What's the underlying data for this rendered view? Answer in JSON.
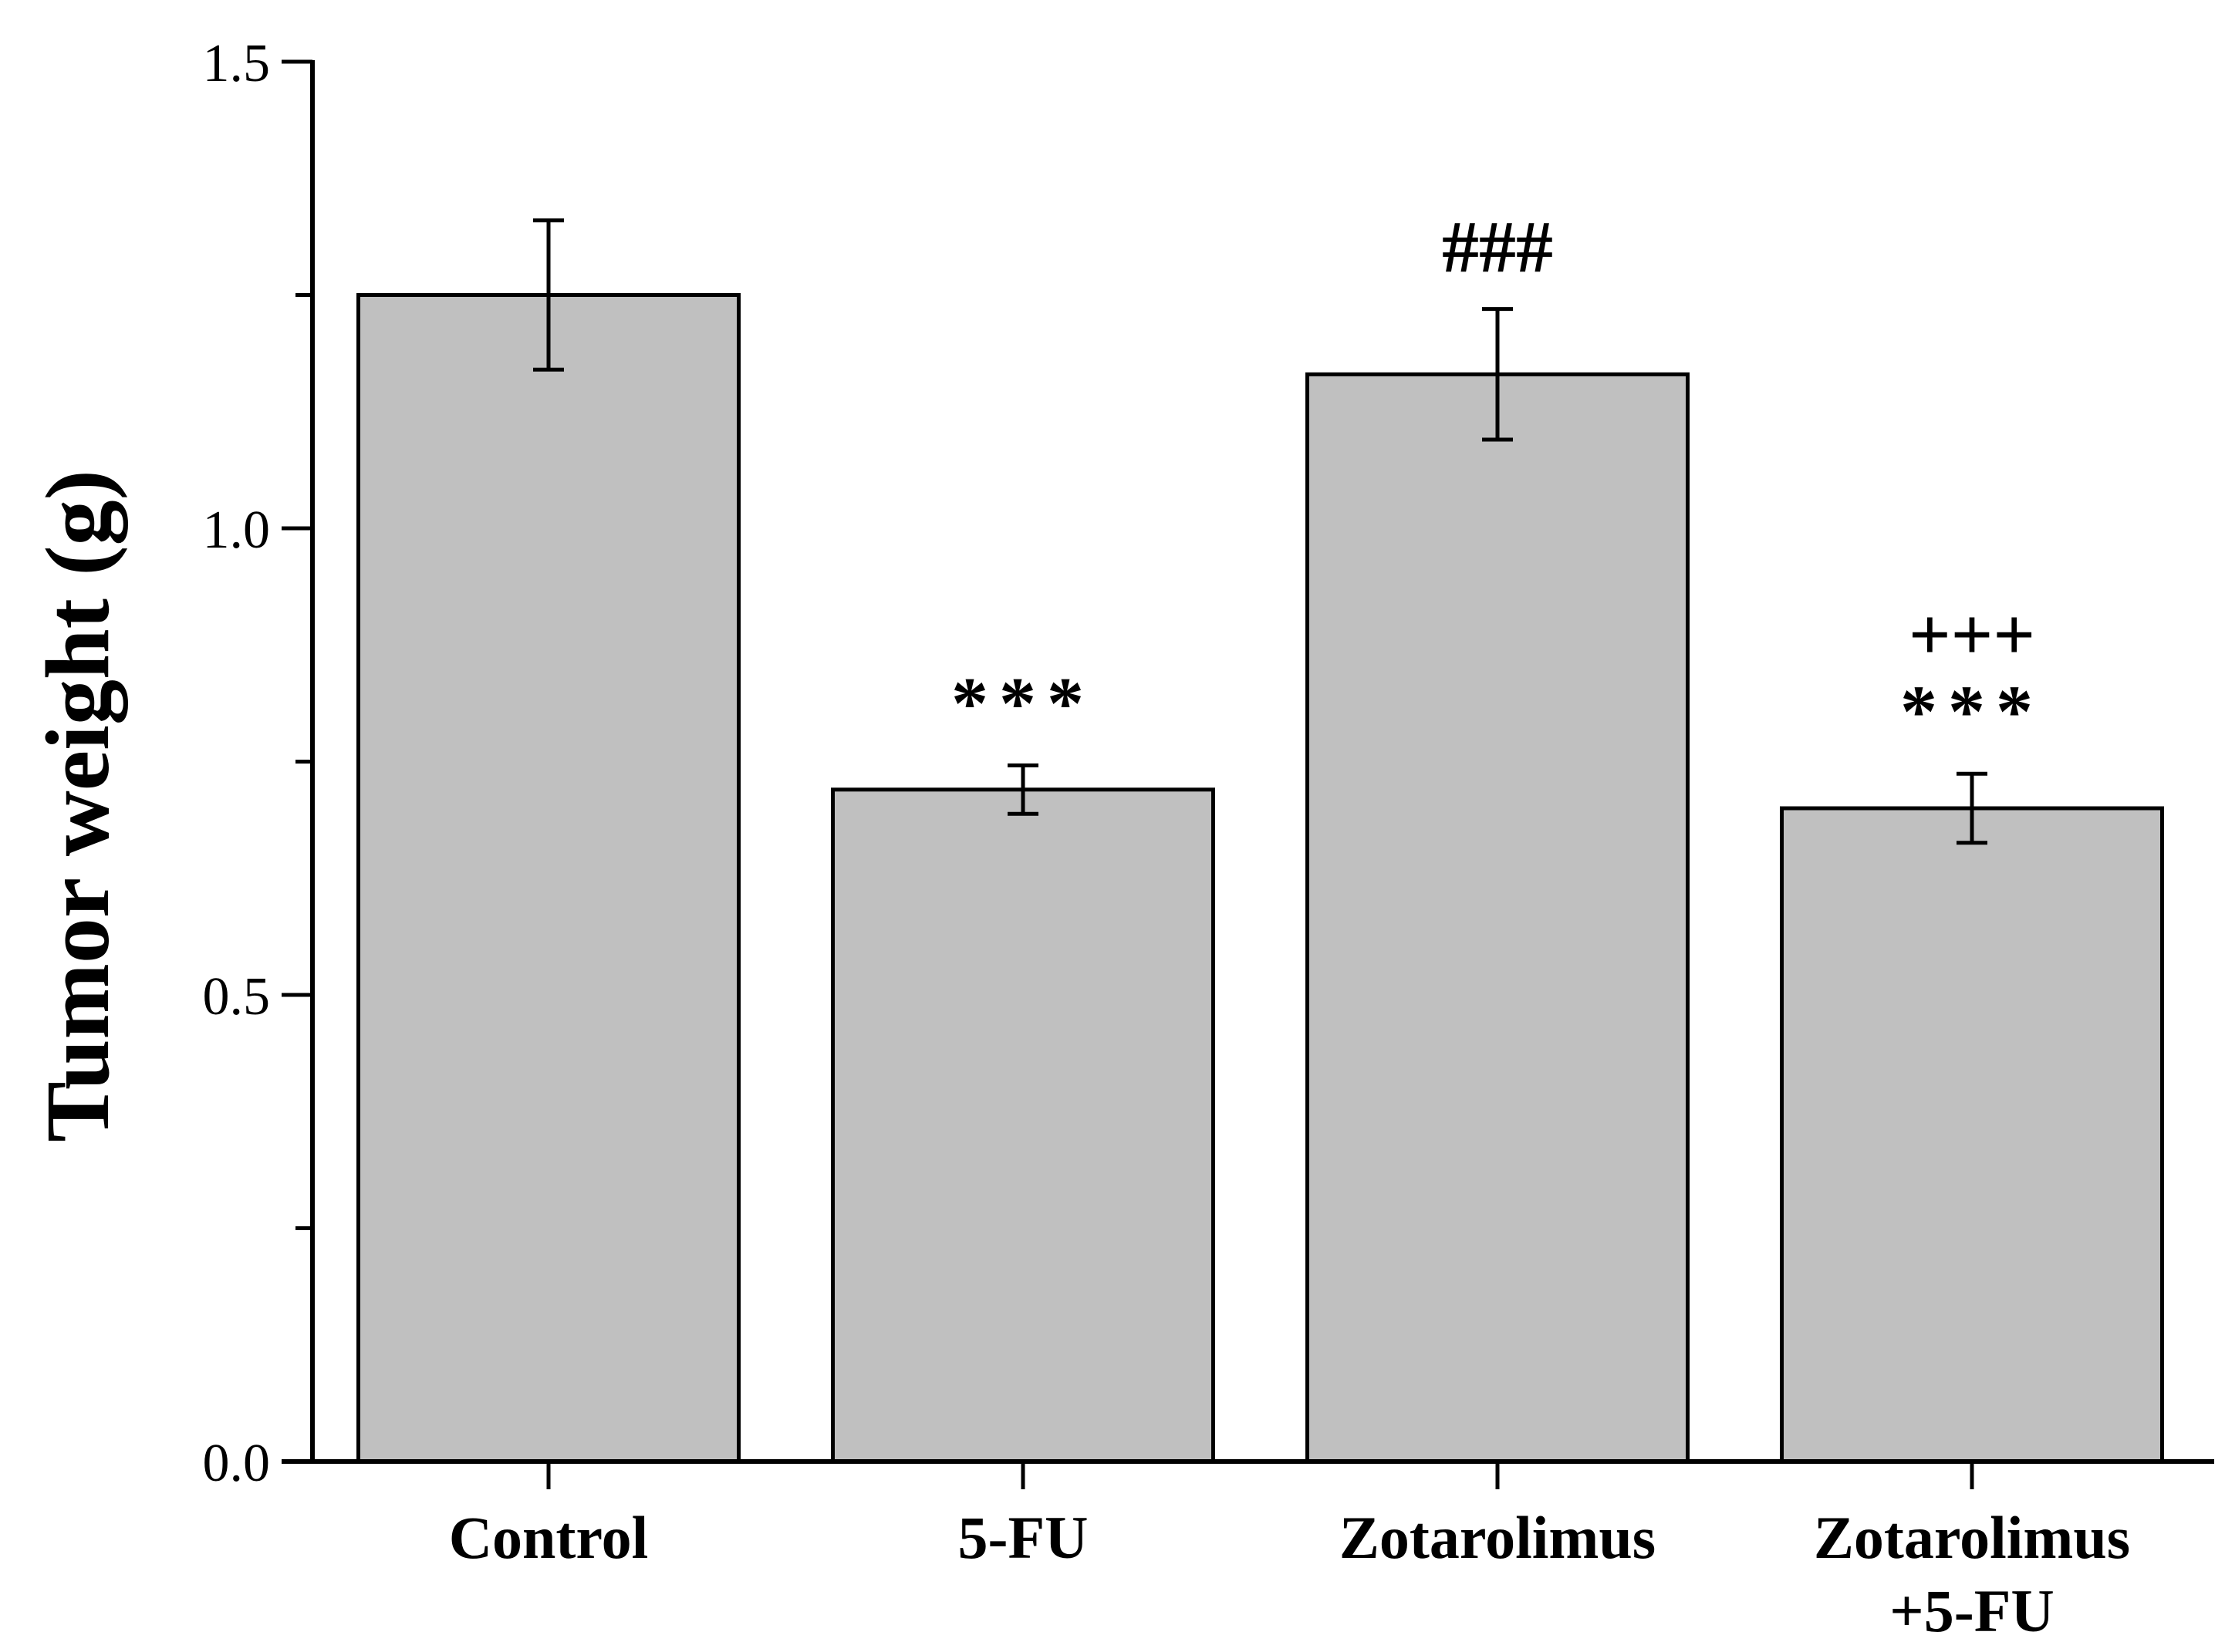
{
  "chart_data": {
    "type": "bar",
    "title": "",
    "xlabel": "",
    "ylabel": "Tumor weight (g)",
    "ylim": [
      0,
      1.5
    ],
    "y_ticks": [
      "0.0",
      "0.5",
      "1.0",
      "1.5"
    ],
    "grid": false,
    "categories": [
      {
        "lines": [
          "Control"
        ]
      },
      {
        "lines": [
          "5-FU"
        ]
      },
      {
        "lines": [
          "Zotarolimus"
        ]
      },
      {
        "lines": [
          "Zotarolimus",
          "+5-FU"
        ]
      }
    ],
    "values": [
      1.25,
      0.72,
      1.165,
      0.7
    ],
    "errors": [
      0.08,
      0.026,
      0.07,
      0.037
    ],
    "annotations": [
      [],
      [
        "***"
      ],
      [
        "###"
      ],
      [
        "+++",
        "***"
      ]
    ],
    "bar_color": "#c0c0c0",
    "edge_color": "#000000"
  }
}
